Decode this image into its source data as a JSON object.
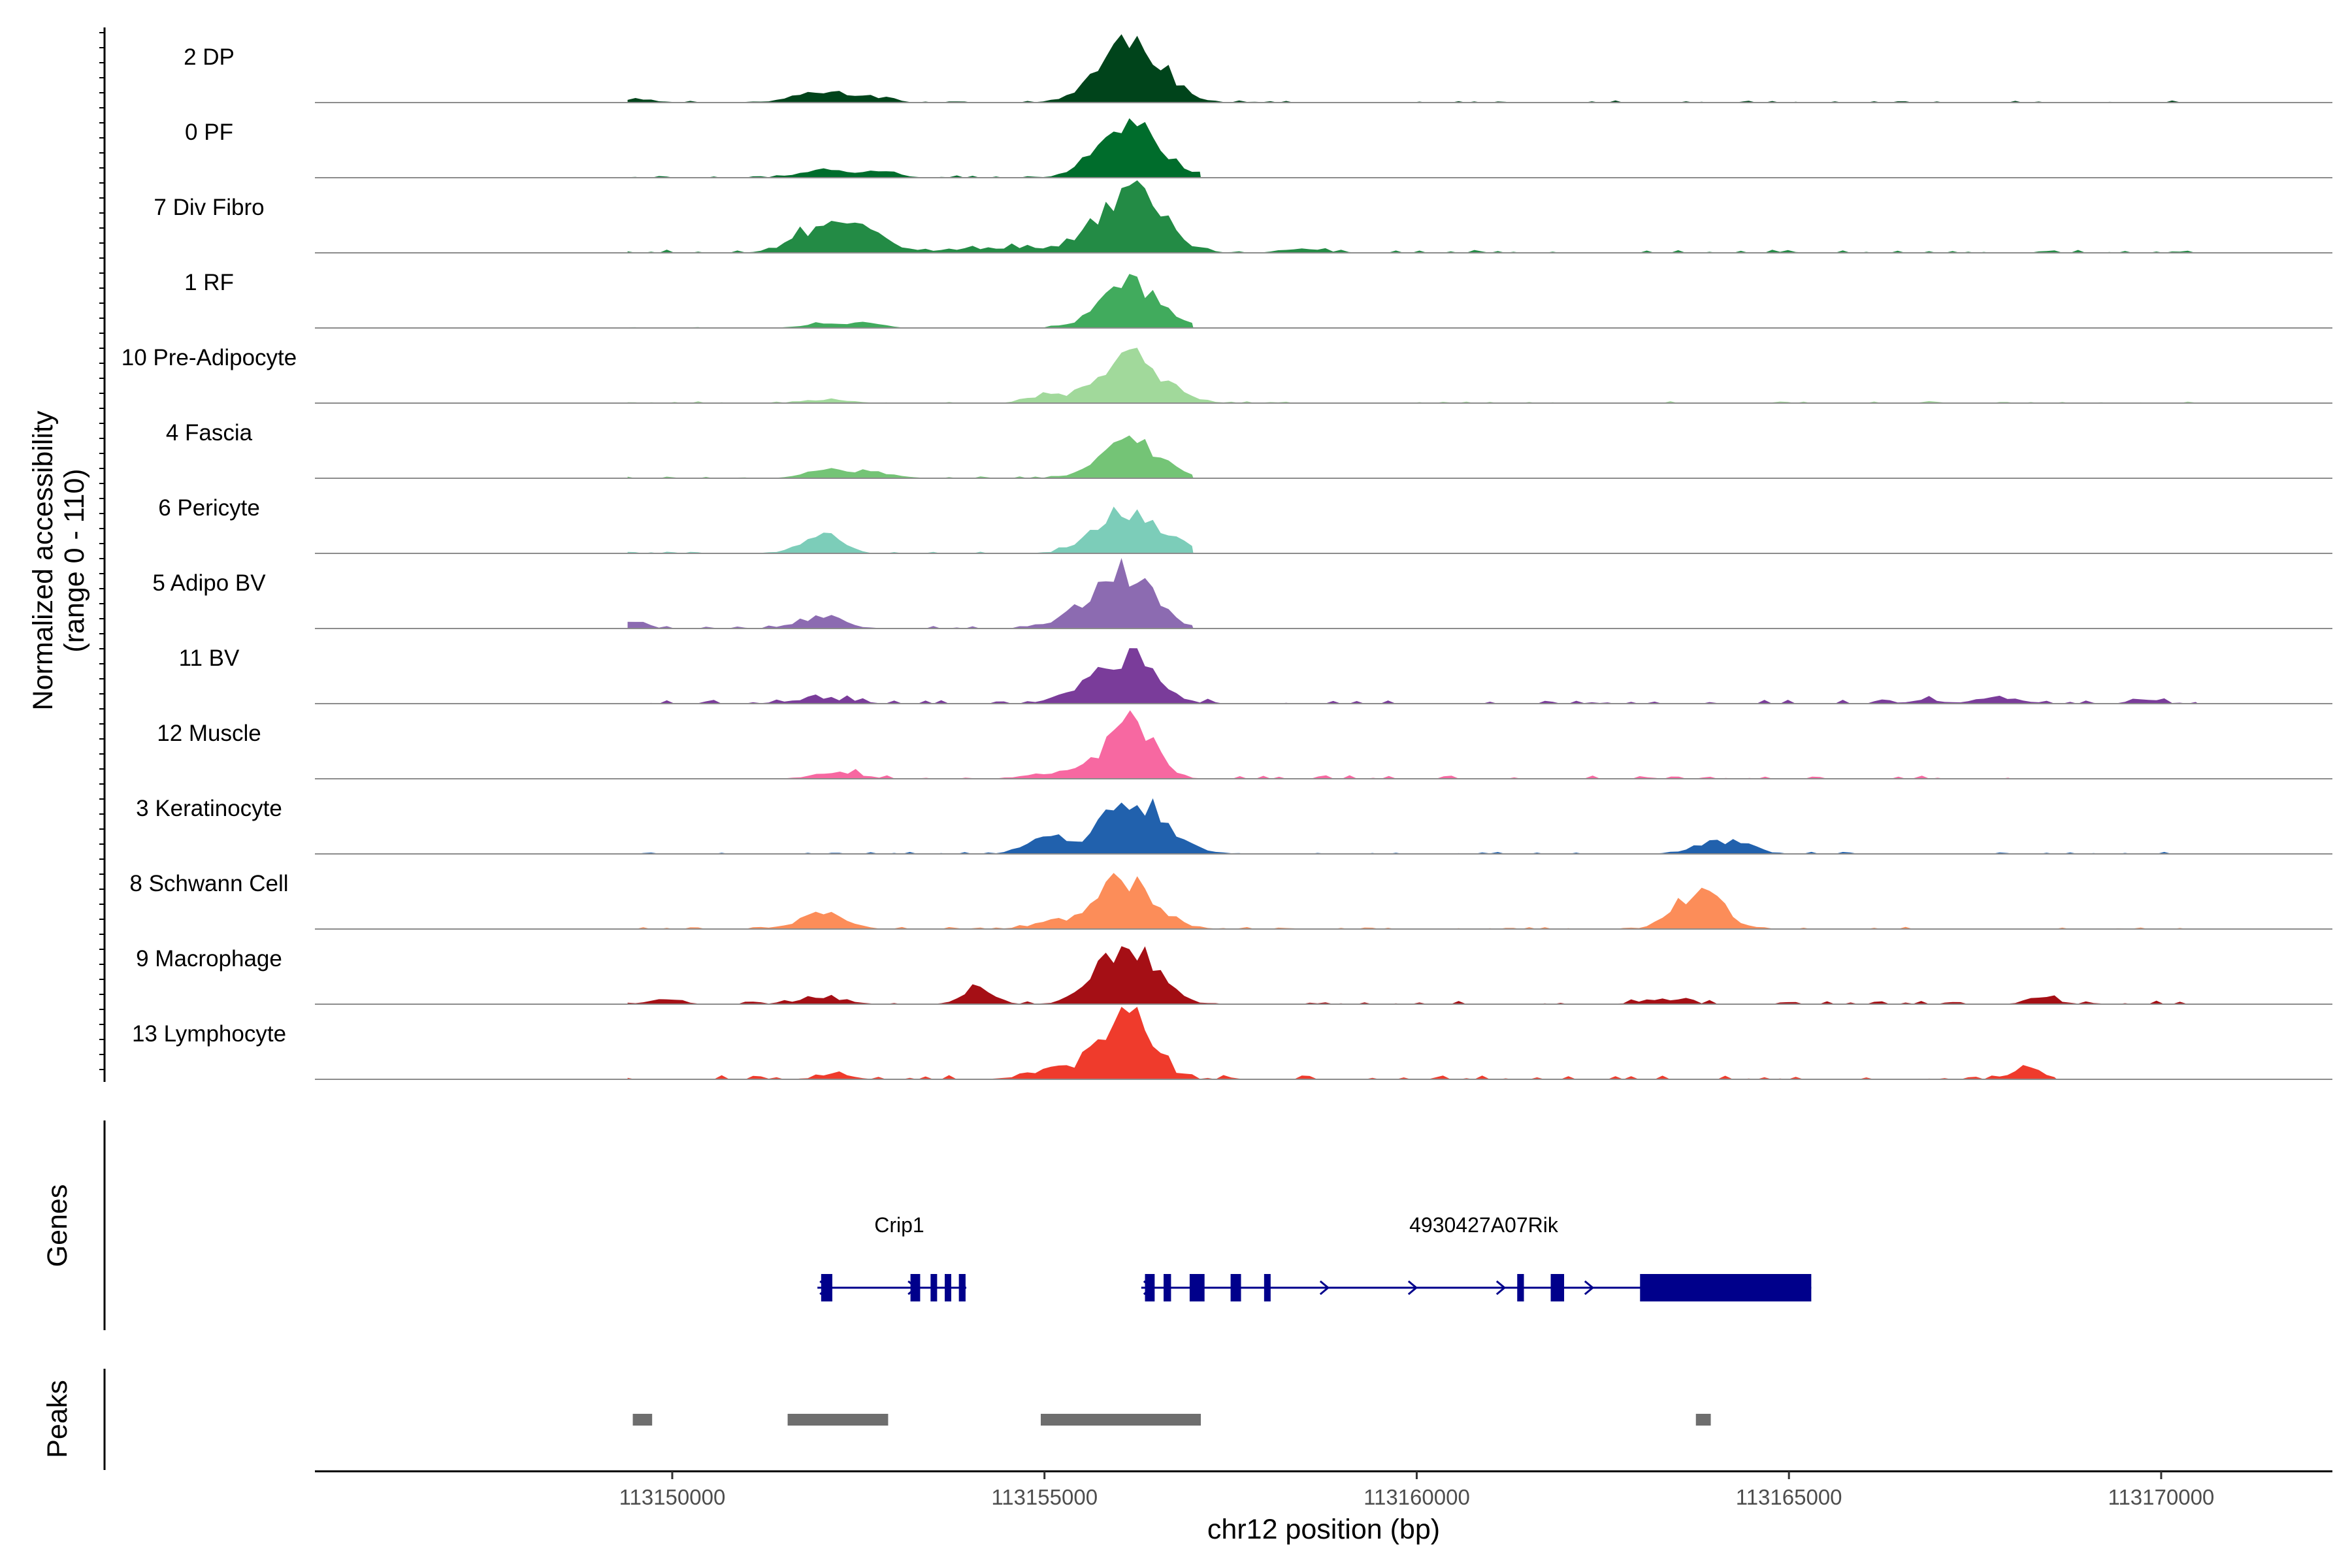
{
  "chart_data": {
    "type": "area",
    "title": "",
    "ylabel": "Normalized accessibility",
    "ylabel_range": "(range 0 - 110)",
    "xlabel": "chr12 position (bp)",
    "xlim": [
      113145200,
      113172300
    ],
    "ylim": [
      0,
      110
    ],
    "x_ticks": [
      {
        "value": 113150000,
        "label": "113150000"
      },
      {
        "value": 113155000,
        "label": "113155000"
      },
      {
        "value": 113160000,
        "label": "113160000"
      },
      {
        "value": 113165000,
        "label": "113165000"
      },
      {
        "value": 113170000,
        "label": "113170000"
      }
    ],
    "tracks": [
      {
        "name": "2 DP",
        "color": "#00441b",
        "peaks": [
          [
            113156160,
            100,
            420
          ],
          [
            113152000,
            18,
            350
          ],
          [
            113152700,
            8,
            250
          ],
          [
            113149500,
            4,
            300
          ]
        ],
        "noise": 3,
        "extent": [
          113149400,
          113170500
        ],
        "seed": 11
      },
      {
        "name": "0 PF",
        "color": "#006d2c",
        "peaks": [
          [
            113156150,
            92,
            400
          ],
          [
            113152100,
            12,
            350
          ],
          [
            113152800,
            8,
            250
          ]
        ],
        "noise": 3,
        "extent": [
          113149400,
          113157100
        ],
        "seed": 12
      },
      {
        "name": "7 Div Fibro",
        "color": "#238b45",
        "peaks": [
          [
            113156150,
            98,
            420
          ],
          [
            113152000,
            40,
            350
          ],
          [
            113152650,
            28,
            300
          ],
          [
            113154300,
            8,
            600
          ],
          [
            113158500,
            6,
            300
          ]
        ],
        "noise": 5,
        "extent": [
          113149400,
          113170500
        ],
        "seed": 13
      },
      {
        "name": "1 RF",
        "color": "#41ab5d",
        "peaks": [
          [
            113156150,
            70,
            380
          ],
          [
            113152100,
            8,
            300
          ],
          [
            113152650,
            8,
            200
          ]
        ],
        "noise": 2,
        "extent": [
          113149400,
          113157000
        ],
        "seed": 14
      },
      {
        "name": "10 Pre-Adipocyte",
        "color": "#a1d99b",
        "peaks": [
          [
            113156150,
            72,
            420
          ],
          [
            113155000,
            10,
            250
          ],
          [
            113152100,
            6,
            300
          ]
        ],
        "noise": 3,
        "extent": [
          113149400,
          113170500
        ],
        "seed": 15
      },
      {
        "name": "4 Fascia",
        "color": "#74c476",
        "peaks": [
          [
            113156150,
            60,
            400
          ],
          [
            113152100,
            12,
            300
          ],
          [
            113152800,
            8,
            250
          ]
        ],
        "noise": 3,
        "extent": [
          113149400,
          113157000
        ],
        "seed": 16
      },
      {
        "name": "6 Pericyte",
        "color": "#7ccdb9",
        "peaks": [
          [
            113156150,
            68,
            420
          ],
          [
            113152000,
            34,
            250
          ]
        ],
        "noise": 3,
        "extent": [
          113149400,
          113157000
        ],
        "seed": 17
      },
      {
        "name": "5 Adipo BV",
        "color": "#8c6bb1",
        "peaks": [
          [
            113156050,
            92,
            380
          ],
          [
            113152000,
            18,
            300
          ],
          [
            113149500,
            12,
            150
          ],
          [
            113155300,
            10,
            300
          ]
        ],
        "noise": 4,
        "extent": [
          113149400,
          113157000
        ],
        "seed": 18
      },
      {
        "name": "11 BV",
        "color": "#7a3c9a",
        "peaks": [
          [
            113156150,
            75,
            350
          ],
          [
            113155500,
            20,
            300
          ],
          [
            113152000,
            8,
            400
          ],
          [
            113167800,
            10,
            300
          ],
          [
            113166800,
            6,
            200
          ],
          [
            113169800,
            6,
            200
          ]
        ],
        "noise": 6,
        "extent": [
          113149400,
          113170500
        ],
        "seed": 19
      },
      {
        "name": "12 Muscle",
        "color": "#f768a1",
        "peaks": [
          [
            113156150,
            95,
            300
          ],
          [
            113152200,
            10,
            300
          ],
          [
            113155300,
            10,
            400
          ]
        ],
        "noise": 6,
        "extent": [
          113151200,
          113168000
        ],
        "seed": 20
      },
      {
        "name": "3 Keratinocyte",
        "color": "#2161ad",
        "peaks": [
          [
            113156200,
            85,
            420
          ],
          [
            113155000,
            30,
            250
          ],
          [
            113164000,
            18,
            300
          ],
          [
            113164400,
            10,
            200
          ]
        ],
        "noise": 3,
        "extent": [
          113149400,
          113170500
        ],
        "seed": 21
      },
      {
        "name": "8 Schwann Cell",
        "color": "#fc8d59",
        "peaks": [
          [
            113156100,
            75,
            400
          ],
          [
            113163800,
            62,
            300
          ],
          [
            113152000,
            25,
            300
          ],
          [
            113155100,
            10,
            300
          ]
        ],
        "noise": 3,
        "extent": [
          113149400,
          113170500
        ],
        "seed": 22
      },
      {
        "name": "9 Macrophage",
        "color": "#a50f15",
        "peaks": [
          [
            113156100,
            95,
            380
          ],
          [
            113154100,
            30,
            200
          ],
          [
            113152000,
            12,
            300
          ],
          [
            113168400,
            12,
            200
          ],
          [
            113149900,
            10,
            200
          ],
          [
            113163300,
            8,
            300
          ]
        ],
        "noise": 5,
        "extent": [
          113149400,
          113170500
        ],
        "seed": 23
      },
      {
        "name": "13 Lymphocyte",
        "color": "#ef3b2c",
        "peaks": [
          [
            113156150,
            115,
            300
          ],
          [
            113155400,
            20,
            450
          ],
          [
            113168200,
            22,
            200
          ],
          [
            113152200,
            10,
            200
          ]
        ],
        "noise": 6,
        "extent": [
          113149400,
          113168600
        ],
        "seed": 24
      }
    ],
    "genes": [
      {
        "name": "Crip1",
        "start": 113151950,
        "end": 113153950,
        "color": "#00008b",
        "exons": [
          [
            113152000,
            113152150
          ],
          [
            113153200,
            113153330
          ],
          [
            113153470,
            113153530
          ],
          [
            113153660,
            113153720
          ],
          [
            113153850,
            113153940
          ]
        ]
      },
      {
        "name": "4930427A07Rik",
        "start": 113156300,
        "end": 113165300,
        "color": "#00008b",
        "exons": [
          [
            113156350,
            113156480
          ],
          [
            113156600,
            113156700
          ],
          [
            113156950,
            113157150
          ],
          [
            113157500,
            113157640
          ],
          [
            113157950,
            113158030
          ],
          [
            113161350,
            113161440
          ],
          [
            113161800,
            113161980
          ],
          [
            113163000,
            113165300
          ]
        ]
      }
    ],
    "peaks_track": [
      {
        "start": 113149470,
        "end": 113149730
      },
      {
        "start": 113151550,
        "end": 113152900
      },
      {
        "start": 113154950,
        "end": 113157100
      },
      {
        "start": 113163750,
        "end": 113163950
      }
    ],
    "panel_labels": {
      "genes": "Genes",
      "peaks": "Peaks"
    }
  }
}
